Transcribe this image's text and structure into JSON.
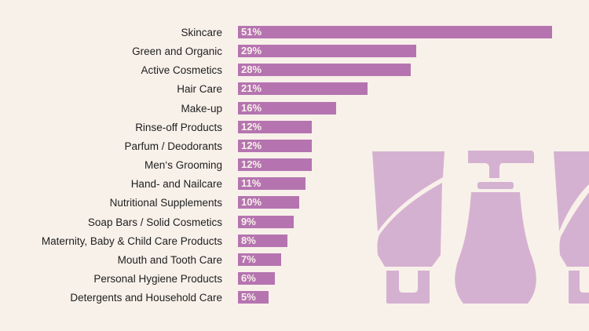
{
  "chart_data": {
    "type": "bar",
    "orientation": "horizontal",
    "categories": [
      "Skincare",
      "Green and Organic",
      "Active Cosmetics",
      "Hair Care",
      "Make-up",
      "Rinse-off Products",
      "Parfum / Deodorants",
      "Men‘s Grooming",
      "Hand- and Nailcare",
      "Nutritional Supplements",
      "Soap Bars / Solid Cosmetics",
      "Maternity, Baby & Child Care Products",
      "Mouth and Tooth Care",
      "Personal Hygiene Products",
      "Detergents and Household Care"
    ],
    "values": [
      51,
      29,
      28,
      21,
      16,
      12,
      12,
      12,
      11,
      10,
      9,
      8,
      7,
      6,
      5
    ],
    "value_labels": [
      "51%",
      "29%",
      "28%",
      "21%",
      "16%",
      "12%",
      "12%",
      "12%",
      "11%",
      "10%",
      "9%",
      "8%",
      "7%",
      "6%",
      "5%"
    ],
    "unit": "%",
    "xlim": [
      0,
      51
    ],
    "grid": false,
    "title": "",
    "xlabel": "",
    "ylabel": ""
  },
  "colors": {
    "background": "#f8f1ea",
    "bar": "#b574b0",
    "illustration": "#d5b1d1"
  }
}
